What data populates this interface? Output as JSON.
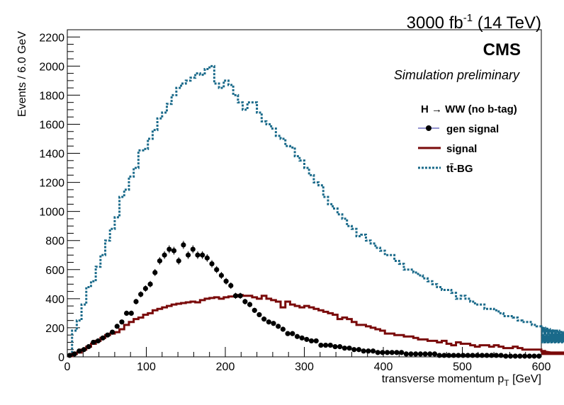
{
  "header": {
    "lumi_value": "3000 fb",
    "lumi_exp": "-1",
    "energy": " (14 TeV)"
  },
  "labels": {
    "experiment": "CMS",
    "status": "Simulation preliminary"
  },
  "legend": {
    "header": "H  → WW (no b-tag)",
    "entries": [
      "gen signal",
      "signal",
      "tt̄-BG"
    ]
  },
  "colors": {
    "gen_signal": "#000000",
    "signal": "#7a0a0a",
    "ttbar": "#1a6a8a"
  },
  "chart_data": {
    "type": "line",
    "xlabel": "transverse momentum p",
    "xlabel_sub": "T",
    "xlabel_unit": " [GeV]",
    "ylabel": "Events / 6.0 GeV",
    "xlim": [
      0,
      600
    ],
    "ylim": [
      0,
      2250
    ],
    "x_ticks": [
      0,
      100,
      200,
      300,
      400,
      500,
      600
    ],
    "y_ticks": [
      0,
      200,
      400,
      600,
      800,
      1000,
      1200,
      1400,
      1600,
      1800,
      2000,
      2200
    ],
    "bin_width": 6,
    "series": [
      {
        "name": "tt̄-BG",
        "style": "dotted-step",
        "values": [
          10,
          180,
          250,
          360,
          480,
          520,
          620,
          700,
          800,
          880,
          960,
          1100,
          1150,
          1240,
          1300,
          1420,
          1430,
          1500,
          1560,
          1640,
          1680,
          1740,
          1800,
          1850,
          1880,
          1900,
          1920,
          1950,
          1940,
          1980,
          2000,
          1880,
          1850,
          1900,
          1870,
          1800,
          1750,
          1700,
          1750,
          1750,
          1680,
          1620,
          1600,
          1570,
          1520,
          1500,
          1450,
          1440,
          1380,
          1350,
          1300,
          1250,
          1200,
          1180,
          1100,
          1050,
          1020,
          980,
          950,
          900,
          880,
          830,
          840,
          800,
          780,
          750,
          730,
          700,
          700,
          660,
          640,
          600,
          600,
          580,
          560,
          540,
          520,
          500,
          480,
          460,
          460,
          440,
          400,
          420,
          400,
          380,
          360,
          360,
          330,
          330,
          320,
          300,
          280,
          280,
          270,
          250,
          240,
          240,
          220,
          210,
          200,
          200,
          190,
          180,
          180,
          170,
          160,
          150,
          160,
          140,
          140,
          130,
          140,
          130,
          120,
          110,
          120,
          110,
          110,
          120,
          110,
          120,
          100,
          130
        ]
      },
      {
        "name": "signal",
        "style": "step",
        "values": [
          5,
          20,
          30,
          50,
          70,
          90,
          110,
          130,
          150,
          160,
          170,
          190,
          220,
          240,
          260,
          270,
          290,
          300,
          320,
          330,
          340,
          350,
          360,
          365,
          370,
          375,
          380,
          375,
          390,
          400,
          405,
          410,
          400,
          410,
          415,
          415,
          425,
          420,
          420,
          410,
          400,
          420,
          400,
          390,
          380,
          340,
          380,
          360,
          350,
          340,
          350,
          340,
          330,
          320,
          310,
          300,
          290,
          260,
          270,
          260,
          240,
          220,
          220,
          210,
          200,
          190,
          180,
          160,
          160,
          150,
          150,
          140,
          140,
          130,
          120,
          120,
          110,
          110,
          100,
          110,
          90,
          80,
          100,
          90,
          90,
          80,
          70,
          80,
          80,
          70,
          80,
          70,
          60,
          60,
          70,
          60,
          50,
          50,
          50,
          50,
          40,
          40,
          30,
          30,
          30,
          20,
          30,
          20,
          20,
          20
        ]
      },
      {
        "name": "gen signal",
        "style": "markers",
        "x": [
          3,
          9,
          15,
          21,
          27,
          33,
          39,
          45,
          51,
          57,
          63,
          69,
          75,
          81,
          87,
          93,
          99,
          105,
          111,
          117,
          123,
          129,
          135,
          141,
          147,
          153,
          159,
          165,
          171,
          177,
          183,
          189,
          195,
          201,
          207,
          213,
          219,
          225,
          231,
          237,
          243,
          249,
          255,
          261,
          267,
          273,
          279,
          285,
          291,
          297,
          303,
          309,
          315,
          321,
          327,
          333,
          339,
          345,
          351,
          357,
          363,
          369,
          375,
          381,
          387,
          393,
          399,
          405,
          411,
          417,
          423,
          429,
          435,
          441,
          447,
          453,
          459,
          465,
          471,
          477,
          483,
          489,
          495,
          501,
          507,
          513,
          519,
          525,
          531,
          537,
          543,
          549,
          555,
          561,
          567,
          573,
          579,
          585,
          591,
          597
        ],
        "values": [
          10,
          20,
          40,
          50,
          70,
          100,
          110,
          130,
          150,
          170,
          210,
          240,
          300,
          300,
          380,
          430,
          470,
          500,
          580,
          660,
          700,
          740,
          730,
          660,
          770,
          700,
          740,
          700,
          700,
          680,
          640,
          600,
          560,
          520,
          490,
          420,
          420,
          380,
          360,
          320,
          290,
          260,
          240,
          230,
          210,
          190,
          160,
          160,
          140,
          130,
          120,
          110,
          110,
          80,
          80,
          80,
          70,
          70,
          60,
          60,
          50,
          50,
          40,
          40,
          40,
          30,
          30,
          30,
          30,
          30,
          30,
          20,
          20,
          20,
          20,
          20,
          20,
          20,
          10,
          10,
          10,
          10,
          10,
          10,
          10,
          10,
          10,
          10,
          10,
          10,
          10,
          10,
          5,
          5,
          5,
          5,
          5,
          5,
          5,
          5
        ]
      }
    ]
  }
}
